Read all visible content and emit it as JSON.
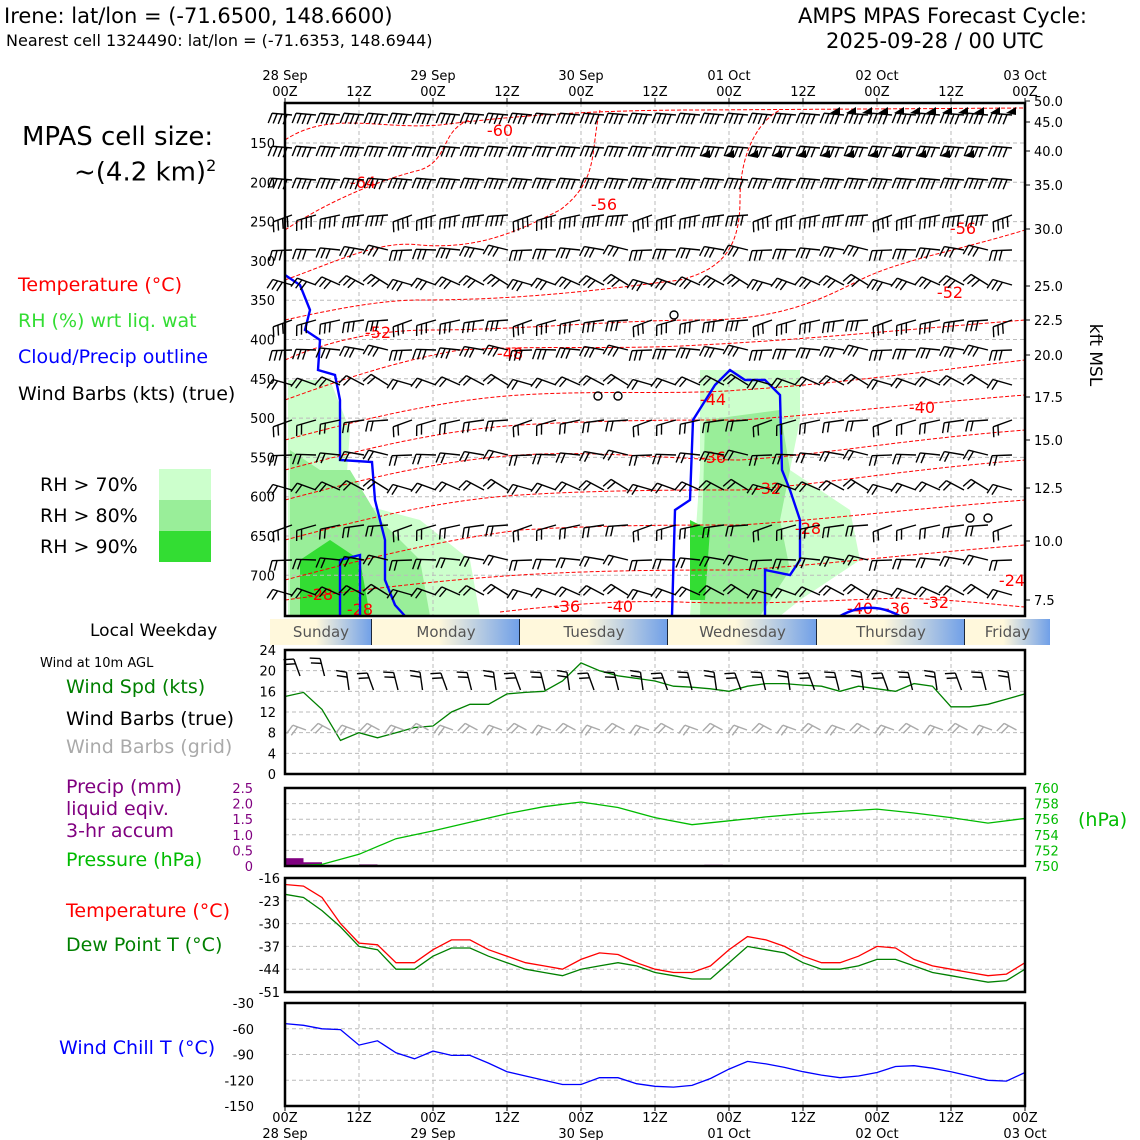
{
  "header": {
    "station_line": "Irene: lat/lon = (-71.6500, 148.6600)",
    "cell_line": "Nearest cell 1324490: lat/lon = (-71.6353, 148.6944)",
    "cycle_title": "AMPS MPAS Forecast Cycle:",
    "cycle_time": "2025-09-28 / 00 UTC"
  },
  "sidebar": {
    "cell_size_label": "MPAS cell size:",
    "cell_size_value": "~(4.2 km)",
    "cell_size_exp": "2",
    "legend_temp": "Temperature (°C)",
    "legend_rh": "RH (%) wrt liq. wat",
    "legend_cloud": "Cloud/Precip outline",
    "legend_barbs": "Wind Barbs (kts) (true)",
    "rh_bins": [
      "RH > 70%",
      "RH > 80%",
      "RH > 90%"
    ],
    "local_weekday": "Local Weekday",
    "wind_10m": "Wind at 10m AGL",
    "wind_spd": "Wind Spd (kts)",
    "wind_barbs_true": "Wind Barbs (true)",
    "wind_barbs_grid": "Wind Barbs (grid)",
    "precip_1": "Precip (mm)",
    "precip_2": "liquid eqiv.",
    "precip_3": "3-hr accum",
    "pressure": "Pressure (hPa)",
    "temp": "Temperature (°C)",
    "dewpt": "Dew Point T (°C)",
    "windchill": "Wind Chill T (°C)"
  },
  "colors": {
    "temp": "#ff0000",
    "rh_label": "#33dd33",
    "cloud": "#0000ff",
    "wind_spd": "#008000",
    "grid_barb": "#aaaaaa",
    "precip": "#800080",
    "pressure": "#00bb00",
    "rh70": "#ccffcc",
    "rh80": "#99ee99",
    "rh90": "#33dd33"
  },
  "time_axis": {
    "hour_labels": [
      "00Z",
      "12Z",
      "00Z",
      "12Z",
      "00Z",
      "12Z",
      "00Z",
      "12Z",
      "00Z",
      "12Z",
      "00Z"
    ],
    "date_labels": [
      "28 Sep",
      "29 Sep",
      "30 Sep",
      "01 Oct",
      "02 Oct",
      "03 Oct"
    ],
    "weekdays": [
      "Sunday",
      "Monday",
      "Tuesday",
      "Wednesday",
      "Thursday",
      "Friday"
    ]
  },
  "chart_data": [
    {
      "type": "heatmap",
      "name": "cross-section",
      "y_left_label": "",
      "y_right_label": "kft MSL",
      "y_left_ticks": [
        "150",
        "200",
        "250",
        "300",
        "350",
        "400",
        "450",
        "500",
        "550",
        "600",
        "650",
        "700"
      ],
      "y_right_ticks": [
        "50.0",
        "45.0",
        "40.0",
        "35.0",
        "30.0",
        "25.0",
        "22.5",
        "20.0",
        "17.5",
        "15.0",
        "12.5",
        "10.0",
        "7.5"
      ],
      "temperature_contour_labels": [
        "-60",
        "-64",
        "-56",
        "-56",
        "-52",
        "-52",
        "-48",
        "-44",
        "-40",
        "-36",
        "-32",
        "-28",
        "-24",
        "-28",
        "-36",
        "-40",
        "-40",
        "-36",
        "-32",
        "-28"
      ]
    },
    {
      "type": "line",
      "name": "wind speed 10m",
      "ylabel": "Wind Spd (kts)",
      "yticks": [
        "24",
        "20",
        "16",
        "12",
        "8",
        "4",
        "0"
      ],
      "ylim": [
        0,
        24
      ],
      "x_hours": [
        0,
        3,
        6,
        9,
        12,
        15,
        18,
        21,
        24,
        27,
        30,
        33,
        36,
        39,
        42,
        45,
        48,
        51,
        54,
        57,
        60,
        63,
        66,
        69,
        72,
        75,
        78,
        81,
        84,
        87,
        90,
        93,
        96,
        99,
        102,
        105,
        108,
        111,
        114,
        117,
        120
      ],
      "values": [
        15,
        15.8,
        12.5,
        6.5,
        8,
        7,
        8,
        9,
        9.3,
        12,
        13.5,
        13.5,
        15.5,
        15.8,
        16,
        18,
        21.5,
        20,
        19,
        18.5,
        18,
        17,
        16.8,
        16.5,
        16,
        17,
        17.5,
        17.5,
        17.2,
        17,
        16,
        17,
        16.5,
        16,
        17.5,
        17,
        13,
        13,
        13.5,
        14.5,
        15.5
      ]
    },
    {
      "type": "line",
      "name": "pressure and precip",
      "ylabel_left": "Precip (mm)",
      "ylabel_right": "(hPa)",
      "yticks_left": [
        "2.5",
        "2.0",
        "1.5",
        "1.0",
        "0.5",
        "0"
      ],
      "yticks_right": [
        "760",
        "758",
        "756",
        "754",
        "752",
        "750"
      ],
      "ylim_left": [
        0,
        2.5
      ],
      "ylim_right": [
        750,
        760
      ],
      "x_hours": [
        0,
        6,
        12,
        18,
        24,
        30,
        36,
        42,
        48,
        54,
        60,
        66,
        72,
        78,
        84,
        90,
        96,
        102,
        108,
        114,
        120
      ],
      "pressure": [
        750,
        750.2,
        751.5,
        753.5,
        754.5,
        755.6,
        756.7,
        757.6,
        758.2,
        757.5,
        756.2,
        755.3,
        755.8,
        756.3,
        756.7,
        757,
        757.3,
        756.8,
        756.2,
        755.5,
        756.1
      ],
      "precip_x_hours": [
        0,
        3,
        12,
        24,
        36,
        48,
        68
      ],
      "precip": [
        0.25,
        0.12,
        0.05,
        0,
        0,
        0,
        0.04
      ]
    },
    {
      "type": "line",
      "name": "temperature and dew point",
      "ylabel": "Temperature (°C)",
      "yticks": [
        "-16",
        "-23",
        "-30",
        "-37",
        "-44",
        "-51"
      ],
      "ylim": [
        -51,
        -16
      ],
      "x_hours": [
        0,
        3,
        6,
        9,
        12,
        15,
        18,
        21,
        24,
        27,
        30,
        33,
        36,
        39,
        42,
        45,
        48,
        51,
        54,
        57,
        60,
        63,
        66,
        69,
        72,
        75,
        78,
        81,
        84,
        87,
        90,
        93,
        96,
        99,
        102,
        105,
        108,
        111,
        114,
        117,
        120
      ],
      "temperature": [
        -18,
        -18.5,
        -22,
        -30,
        -36,
        -36.5,
        -42,
        -42,
        -38,
        -35,
        -35,
        -38,
        -40,
        -42,
        -43,
        -44,
        -41,
        -39,
        -39.5,
        -42,
        -44,
        -45,
        -45,
        -43,
        -38,
        -34,
        -35,
        -37,
        -40,
        -42,
        -42,
        -40,
        -37,
        -37.5,
        -41,
        -43,
        -44,
        -45,
        -46,
        -45.5,
        -42
      ],
      "dewpoint": [
        -21,
        -22,
        -26,
        -31,
        -37,
        -38,
        -44,
        -44,
        -40,
        -37.5,
        -37.5,
        -40,
        -42,
        -44,
        -45,
        -46,
        -44,
        -43,
        -42,
        -43,
        -45,
        -46,
        -47,
        -47,
        -42,
        -37,
        -38,
        -39,
        -42,
        -44,
        -44,
        -43,
        -41,
        -41,
        -43,
        -45,
        -46,
        -47,
        -48,
        -47.5,
        -44
      ]
    },
    {
      "type": "line",
      "name": "wind chill",
      "ylabel": "Wind Chill T (°C)",
      "yticks": [
        "-30",
        "-60",
        "-90",
        "-120",
        "-150"
      ],
      "ylim": [
        -150,
        -30
      ],
      "x_hours": [
        0,
        3,
        6,
        9,
        12,
        15,
        18,
        21,
        24,
        27,
        30,
        33,
        36,
        39,
        42,
        45,
        48,
        51,
        54,
        57,
        60,
        63,
        66,
        69,
        72,
        75,
        78,
        81,
        84,
        87,
        90,
        93,
        96,
        99,
        102,
        105,
        108,
        111,
        114,
        117,
        120
      ],
      "values": [
        -54,
        -56,
        -60,
        -61,
        -79,
        -74,
        -88,
        -95,
        -86,
        -91,
        -91,
        -100,
        -110,
        -115,
        -120,
        -125,
        -125,
        -117,
        -117,
        -124,
        -127,
        -128,
        -126,
        -118,
        -107,
        -98,
        -101,
        -105,
        -110,
        -114,
        -117,
        -115,
        -111,
        -104,
        -103,
        -106,
        -110,
        -115,
        -120,
        -121,
        -111
      ]
    }
  ]
}
